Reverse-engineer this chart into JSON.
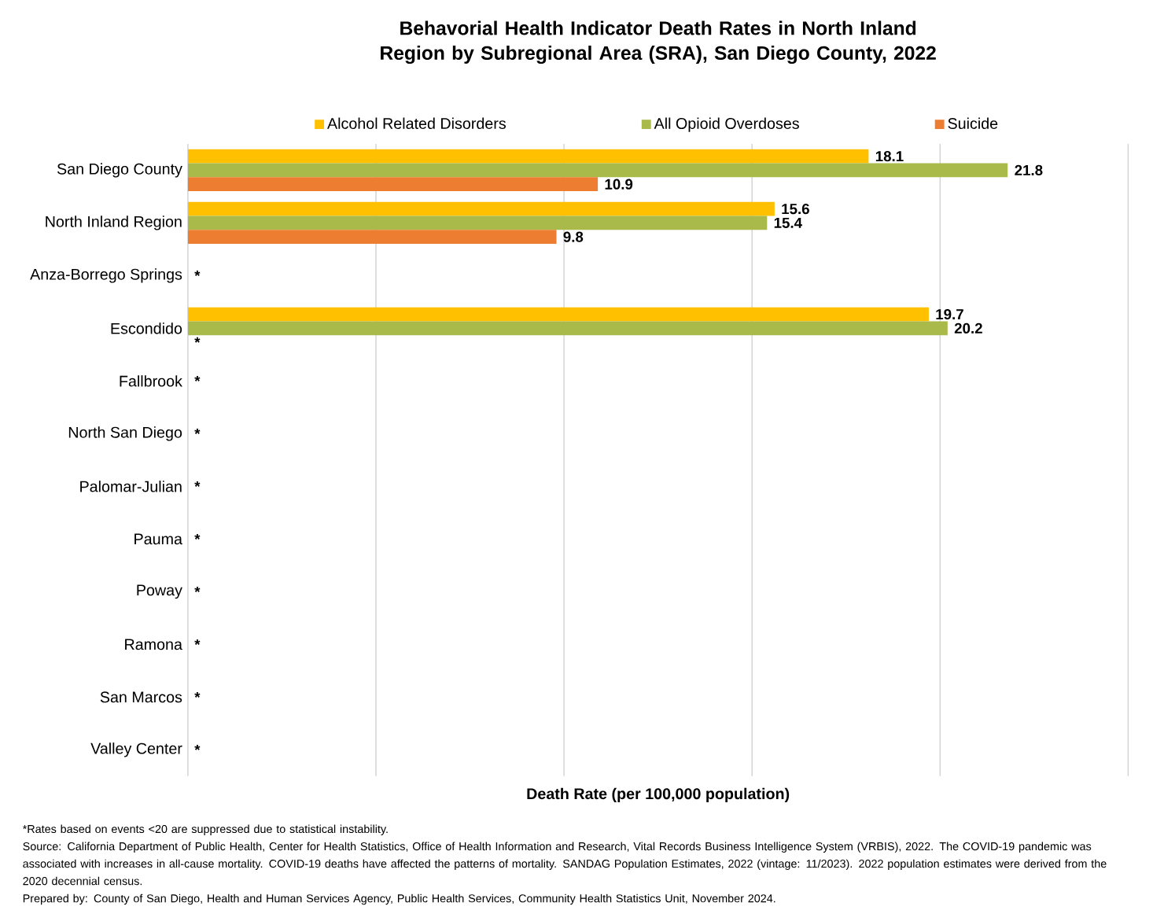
{
  "chart_data": {
    "type": "bar",
    "orientation": "horizontal",
    "title": "Behavorial Health Indicator Death Rates in North Inland Region by Subregional Area (SRA), San Diego County, 2022",
    "xlabel": "Death Rate (per 100,000 population)",
    "categories": [
      "San Diego County",
      "North Inland Region",
      "Anza-Borrego Springs",
      "Escondido",
      "Fallbrook",
      "North San Diego",
      "Palomar-Julian",
      "Pauma",
      "Poway",
      "Ramona",
      "San Marcos",
      "Valley Center"
    ],
    "series": [
      {
        "name": "Alcohol Related Disorders",
        "color": "#ffc000",
        "values": [
          18.1,
          15.6,
          null,
          19.7,
          null,
          null,
          null,
          null,
          null,
          null,
          null,
          null
        ],
        "value_labels": [
          "18.1",
          "15.6",
          null,
          "19.7",
          null,
          null,
          null,
          null,
          null,
          null,
          null,
          null
        ]
      },
      {
        "name": "All Opioid Overdoses",
        "color": "#a9b94a",
        "values": [
          21.8,
          15.4,
          null,
          20.2,
          null,
          null,
          null,
          null,
          null,
          null,
          null,
          null
        ],
        "value_labels": [
          "21.8",
          "15.4",
          "*",
          "20.2",
          "*",
          "*",
          "*",
          "*",
          "*",
          "*",
          "*",
          "*"
        ]
      },
      {
        "name": "Suicide",
        "color": "#ed7d31",
        "values": [
          10.9,
          9.8,
          null,
          null,
          null,
          null,
          null,
          null,
          null,
          null,
          null,
          null
        ],
        "value_labels": [
          "10.9",
          "9.8",
          null,
          "*",
          null,
          null,
          null,
          null,
          null,
          null,
          null,
          null
        ]
      }
    ],
    "xlim": [
      0,
      25
    ],
    "xticks": [
      {
        "value": 0,
        "label": null
      },
      {
        "value": 5,
        "label": null
      },
      {
        "value": 10,
        "label": null
      },
      {
        "value": 15,
        "label": null
      },
      {
        "value": 20,
        "label": null
      },
      {
        "value": 25,
        "label": null
      }
    ],
    "grid": "x",
    "tick_labels": "y",
    "legend": "top",
    "annotations": [
      "*Rates based on events <20 are suppressed due to statistical instability.",
      "Source: California Department of Public Health, Center for Health Statistics, Office of Health Information and Research, Vital Records Business Intelligence System (VRBIS), 2022. The COVID-19 pandemic was associated with increases in all-cause mortality. COVID-19 deaths have affected the patterns of mortality. SANDAG Population Estimates, 2022 (vintage: 11/2023). 2022 population estimates were derived from the 2020 decennial census.",
      "Prepared by: County of San Diego, Health and Human Services Agency, Public Health Services, Community Health Statistics Unit, November 2024."
    ]
  }
}
